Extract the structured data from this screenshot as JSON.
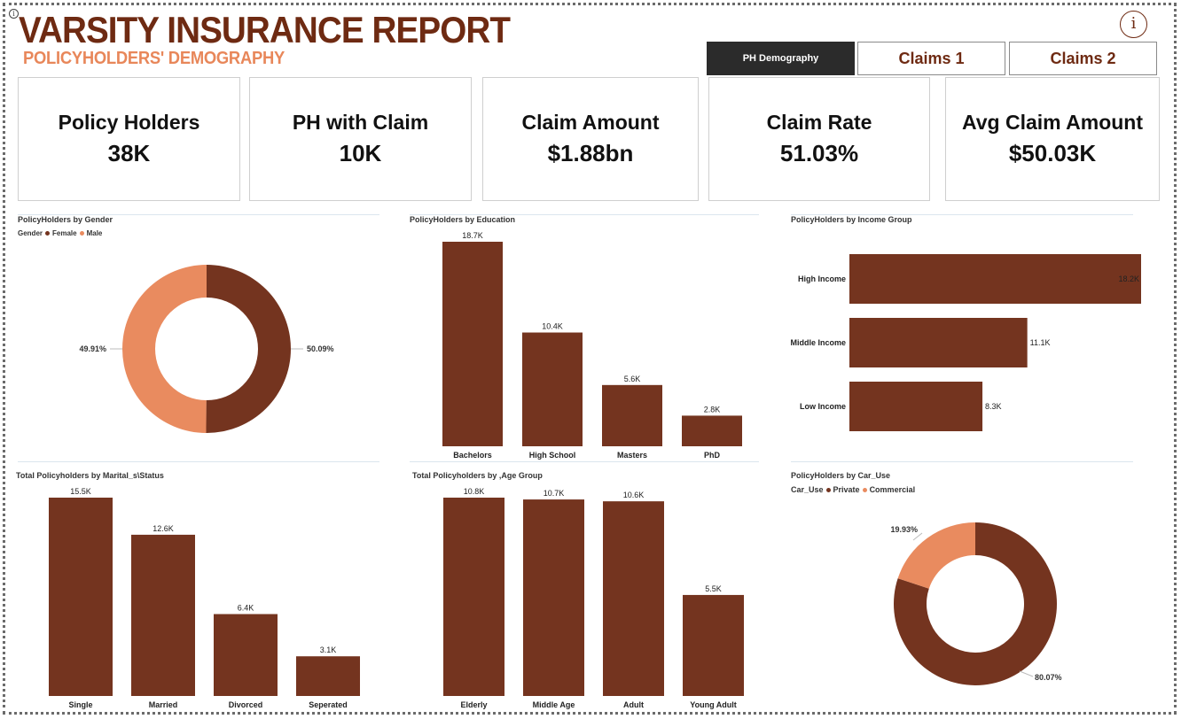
{
  "header": {
    "title": "VARSITY INSURANCE REPORT",
    "subtitle": "POLICYHOLDERS' DEMOGRAPHY",
    "info_icon": "info-icon"
  },
  "nav": {
    "tabs": [
      {
        "label": "PH Demography",
        "active": true
      },
      {
        "label": "Claims 1",
        "active": false
      },
      {
        "label": "Claims 2",
        "active": false
      }
    ]
  },
  "kpis": [
    {
      "label": "Policy Holders",
      "value": "38K"
    },
    {
      "label": "PH with Claim",
      "value": "10K"
    },
    {
      "label": "Claim Amount",
      "value": "$1.88bn"
    },
    {
      "label": "Claim Rate",
      "value": "51.03%"
    },
    {
      "label": "Avg Claim Amount",
      "value": "$50.03K"
    }
  ],
  "colors": {
    "brown": "#74341f",
    "orange": "#e98b5f",
    "title_brown": "#6e2a12",
    "subtitle_orange": "#e8875a"
  },
  "chart_data": [
    {
      "id": "gender",
      "type": "pie",
      "title": "PolicyHolders by Gender",
      "legend_title": "Gender",
      "categories": [
        "Female",
        "Male"
      ],
      "values": [
        50.09,
        49.91
      ],
      "labels": [
        "50.09%",
        "49.91%"
      ],
      "legend": "top-left"
    },
    {
      "id": "education",
      "type": "bar",
      "title": "PolicyHolders by Education",
      "categories": [
        "Bachelors",
        "High School",
        "Masters",
        "PhD"
      ],
      "values": [
        18.7,
        10.4,
        5.6,
        2.8
      ],
      "labels": [
        "18.7K",
        "10.4K",
        "5.6K",
        "2.8K"
      ],
      "ylim": [
        0,
        18.7
      ]
    },
    {
      "id": "income",
      "type": "bar",
      "orientation": "horizontal",
      "title": "PolicyHolders by Income Group",
      "categories": [
        "High Income",
        "Middle Income",
        "Low Income"
      ],
      "values": [
        18.2,
        11.1,
        8.3
      ],
      "labels": [
        "18.2K",
        "11.1K",
        "8.3K"
      ],
      "xlim": [
        0,
        18.2
      ]
    },
    {
      "id": "marital",
      "type": "bar",
      "title": "Total Policyholders by Marital_s\\Status",
      "categories": [
        "Single",
        "Married",
        "Divorced",
        "Seperated"
      ],
      "values": [
        15.5,
        12.6,
        6.4,
        3.1
      ],
      "labels": [
        "15.5K",
        "12.6K",
        "6.4K",
        "3.1K"
      ],
      "ylim": [
        0,
        15.5
      ]
    },
    {
      "id": "age",
      "type": "bar",
      "title": "Total Policyholders by ,Age Group",
      "categories": [
        "Elderly",
        "Middle Age",
        "Adult",
        "Young Adult"
      ],
      "values": [
        10.8,
        10.7,
        10.6,
        5.5
      ],
      "labels": [
        "10.8K",
        "10.7K",
        "10.6K",
        "5.5K"
      ],
      "ylim": [
        0,
        10.8
      ]
    },
    {
      "id": "caruse",
      "type": "pie",
      "title": "PolicyHolders by Car_Use",
      "legend_title": "Car_Use",
      "categories": [
        "Private",
        "Commercial"
      ],
      "values": [
        80.07,
        19.93
      ],
      "labels": [
        "80.07%",
        "19.93%"
      ],
      "legend": "top-left"
    }
  ]
}
